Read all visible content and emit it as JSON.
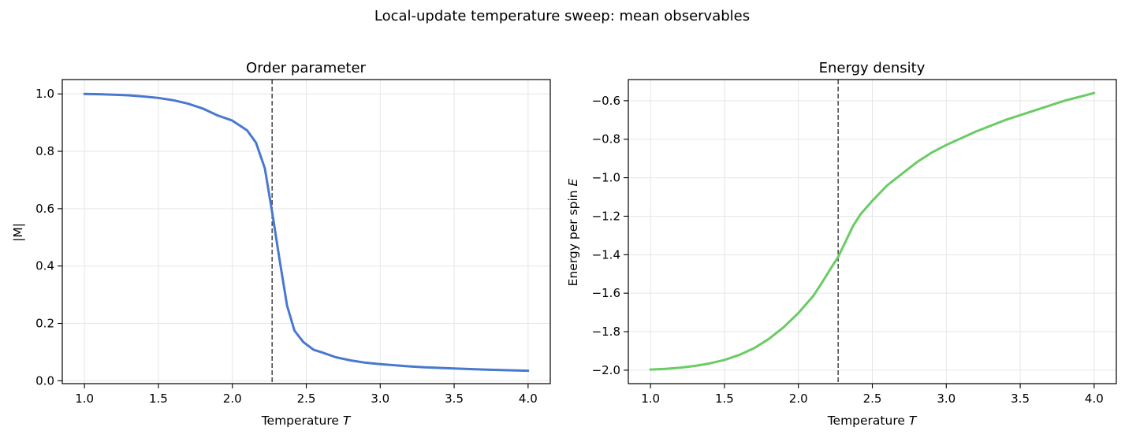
{
  "figure": {
    "suptitle": "Local-update temperature sweep: mean observables",
    "critical_temperature": 2.269,
    "grid": true
  },
  "chart_data": [
    {
      "type": "line",
      "title": "Order parameter",
      "xlabel": "Temperature",
      "xlabel_symbol": "T",
      "ylabel": "|M|",
      "xlim": [
        0.85,
        4.15
      ],
      "ylim": [
        -0.01,
        1.05
      ],
      "xticks": [
        1.0,
        1.5,
        2.0,
        2.5,
        3.0,
        3.5,
        4.0
      ],
      "xtick_labels": [
        "1.0",
        "1.5",
        "2.0",
        "2.5",
        "3.0",
        "3.5",
        "4.0"
      ],
      "yticks": [
        0.0,
        0.2,
        0.4,
        0.6,
        0.8,
        1.0
      ],
      "ytick_labels": [
        "0.0",
        "0.2",
        "0.4",
        "0.6",
        "0.8",
        "1.0"
      ],
      "color": "#4878d0",
      "series": [
        {
          "x": [
            1.0,
            1.1,
            1.2,
            1.3,
            1.4,
            1.5,
            1.6,
            1.7,
            1.8,
            1.9,
            2.0,
            2.1,
            2.16,
            2.22,
            2.27,
            2.32,
            2.37,
            2.42,
            2.48,
            2.55,
            2.6,
            2.7,
            2.8,
            2.9,
            3.0,
            3.1,
            3.2,
            3.3,
            3.5,
            3.7,
            4.0
          ],
          "y": [
            1.0,
            0.999,
            0.997,
            0.995,
            0.991,
            0.986,
            0.978,
            0.966,
            0.949,
            0.925,
            0.907,
            0.873,
            0.83,
            0.74,
            0.585,
            0.42,
            0.262,
            0.175,
            0.135,
            0.108,
            0.1,
            0.082,
            0.071,
            0.063,
            0.058,
            0.054,
            0.05,
            0.047,
            0.043,
            0.039,
            0.035
          ]
        }
      ],
      "vline": 2.269
    },
    {
      "type": "line",
      "title": "Energy density",
      "xlabel": "Temperature",
      "xlabel_symbol": "T",
      "ylabel": "Energy per spin",
      "ylabel_symbol": "E",
      "xlim": [
        0.85,
        4.15
      ],
      "ylim": [
        -2.07,
        -0.49
      ],
      "xticks": [
        1.0,
        1.5,
        2.0,
        2.5,
        3.0,
        3.5,
        4.0
      ],
      "xtick_labels": [
        "1.0",
        "1.5",
        "2.0",
        "2.5",
        "3.0",
        "3.5",
        "4.0"
      ],
      "yticks": [
        -2.0,
        -1.8,
        -1.6,
        -1.4,
        -1.2,
        -1.0,
        -0.8,
        -0.6
      ],
      "ytick_labels": [
        "−2.0",
        "−1.8",
        "−1.6",
        "−1.4",
        "−1.2",
        "−1.0",
        "−0.8",
        "−0.6"
      ],
      "color": "#6acc64",
      "series": [
        {
          "x": [
            1.0,
            1.1,
            1.2,
            1.3,
            1.4,
            1.5,
            1.6,
            1.7,
            1.8,
            1.9,
            2.0,
            2.1,
            2.16,
            2.22,
            2.27,
            2.32,
            2.37,
            2.42,
            2.5,
            2.6,
            2.7,
            2.8,
            2.9,
            3.0,
            3.2,
            3.4,
            3.6,
            3.8,
            4.0
          ],
          "y": [
            -1.997,
            -1.993,
            -1.987,
            -1.978,
            -1.965,
            -1.947,
            -1.921,
            -1.886,
            -1.838,
            -1.777,
            -1.703,
            -1.615,
            -1.545,
            -1.47,
            -1.41,
            -1.33,
            -1.25,
            -1.19,
            -1.12,
            -1.04,
            -0.98,
            -0.92,
            -0.87,
            -0.83,
            -0.76,
            -0.7,
            -0.65,
            -0.6,
            -0.56
          ]
        }
      ],
      "vline": 2.269
    }
  ]
}
